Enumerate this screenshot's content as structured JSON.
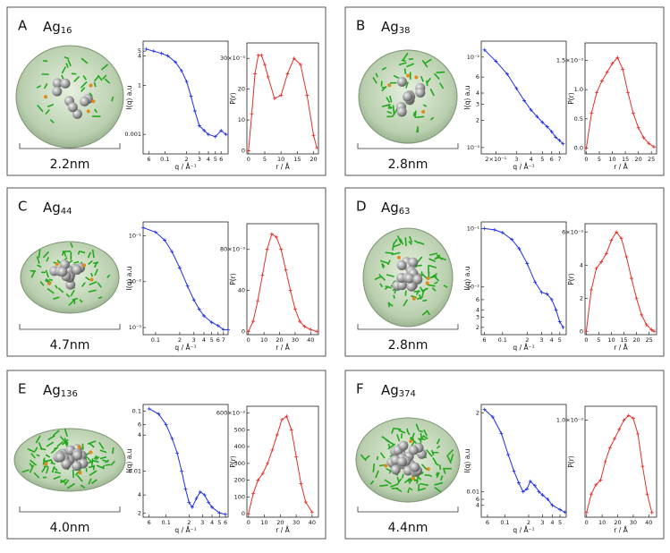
{
  "panels": [
    {
      "letter": "A",
      "element": "Ag",
      "subscript": "16",
      "size": "2.2nm"
    },
    {
      "letter": "B",
      "element": "Ag",
      "subscript": "38",
      "size": "2.8nm"
    },
    {
      "letter": "C",
      "element": "Ag",
      "subscript": "44",
      "size": "4.7nm"
    },
    {
      "letter": "D",
      "element": "Ag",
      "subscript": "63",
      "size": "2.8nm"
    },
    {
      "letter": "E",
      "element": "Ag",
      "subscript": "136",
      "size": "4.0nm"
    },
    {
      "letter": "F",
      "element": "Ag",
      "subscript": "374",
      "size": "4.4nm"
    }
  ],
  "chart_data": [
    {
      "type": "line",
      "xlabel": "q / Å⁻¹",
      "ylabel": "I(q) a.u",
      "xlog": true,
      "ylog": true,
      "color": "#1f2fe0",
      "xlim": [
        0.05,
        0.75
      ],
      "ylim": [
        0.0004,
        0.08
      ],
      "xticks": [
        {
          "value": 0.06,
          "label": "6"
        },
        0.1,
        {
          "value": 0.2,
          "label": "2"
        },
        {
          "value": 0.3,
          "label": "3"
        },
        {
          "value": 0.4,
          "label": "4"
        },
        {
          "value": 0.5,
          "label": "5"
        },
        {
          "value": 0.6,
          "label": "6"
        }
      ],
      "yticks": [
        {
          "value": 0.05,
          "label": "5"
        },
        {
          "value": 0.04,
          "label": "4"
        },
        {
          "value": 0.01,
          "label": "1"
        },
        0.001
      ],
      "x": [
        0.055,
        0.07,
        0.09,
        0.11,
        0.14,
        0.17,
        0.2,
        0.23,
        0.26,
        0.3,
        0.35,
        0.4,
        0.5,
        0.6,
        0.7
      ],
      "values": [
        0.055,
        0.05,
        0.045,
        0.04,
        0.03,
        0.02,
        0.012,
        0.006,
        0.003,
        0.0015,
        0.0012,
        0.001,
        0.0009,
        0.0012,
        0.001
      ]
    },
    {
      "type": "line",
      "xlabel": "r / Å",
      "ylabel": "P(r)",
      "color": "#e0302a",
      "xlim": [
        -0.5,
        21.5
      ],
      "ylim": [
        -1,
        35
      ],
      "xticks": [
        0,
        5,
        10,
        15,
        20
      ],
      "yticks": [
        0,
        10,
        20,
        {
          "value": 30,
          "label": "30×10⁻³"
        }
      ],
      "x": [
        0,
        1,
        2,
        3,
        4,
        5,
        6,
        8,
        10,
        12,
        14,
        16,
        18,
        20,
        21
      ],
      "values": [
        0,
        12,
        25,
        31,
        31,
        28,
        24,
        17,
        18,
        25,
        30,
        28,
        18,
        5,
        1
      ]
    },
    {
      "type": "line",
      "xlabel": "q / Å⁻¹",
      "ylabel": "I(q) a.u",
      "xlog": true,
      "ylog": true,
      "color": "#1f2fe0",
      "xlim": [
        0.15,
        0.8
      ],
      "ylim": [
        0.00085,
        0.015
      ],
      "xticks": [
        {
          "value": 0.2,
          "label": "2×10⁻¹"
        },
        {
          "value": 0.3,
          "label": "3"
        },
        {
          "value": 0.4,
          "label": "4"
        },
        {
          "value": 0.5,
          "label": "5"
        },
        {
          "value": 0.6,
          "label": "6"
        },
        {
          "value": 0.7,
          "label": "7"
        }
      ],
      "yticks": [
        {
          "value": 0.01,
          "label": "10⁻²"
        },
        {
          "value": 0.006,
          "label": "6"
        },
        {
          "value": 0.004,
          "label": "4"
        },
        {
          "value": 0.003,
          "label": "3"
        },
        {
          "value": 0.002,
          "label": "2"
        },
        {
          "value": 0.001,
          "label": "10⁻³"
        }
      ],
      "x": [
        0.16,
        0.2,
        0.25,
        0.3,
        0.35,
        0.4,
        0.45,
        0.5,
        0.55,
        0.6,
        0.65,
        0.7,
        0.75
      ],
      "values": [
        0.012,
        0.009,
        0.0065,
        0.0045,
        0.0033,
        0.0026,
        0.0022,
        0.0019,
        0.0017,
        0.0015,
        0.0013,
        0.0012,
        0.0011
      ]
    },
    {
      "type": "line",
      "xlabel": "r / Å",
      "ylabel": "P(r)",
      "color": "#e0302a",
      "xlim": [
        -0.5,
        27
      ],
      "ylim": [
        -0.1,
        1.8
      ],
      "xticks": [
        0,
        5,
        10,
        15,
        20,
        25
      ],
      "yticks": [
        {
          "value": 0,
          "label": "0.0"
        },
        0.5,
        {
          "value": 1,
          "label": "1.0"
        },
        {
          "value": 1.5,
          "label": "1.5×10⁻³"
        }
      ],
      "x": [
        0,
        2,
        4,
        6,
        8,
        10,
        12,
        14,
        16,
        18,
        20,
        22,
        24,
        26
      ],
      "values": [
        0,
        0.6,
        0.95,
        1.15,
        1.3,
        1.45,
        1.55,
        1.35,
        0.95,
        0.6,
        0.35,
        0.18,
        0.08,
        0.02
      ]
    },
    {
      "type": "line",
      "xlabel": "q / Å⁻¹",
      "ylabel": "I(q) a.u",
      "xlog": true,
      "ylog": true,
      "color": "#1f2fe0",
      "xlim": [
        0.07,
        0.8
      ],
      "ylim": [
        0.0007,
        0.2
      ],
      "xticks": [
        0.1,
        {
          "value": 0.2,
          "label": "2"
        },
        {
          "value": 0.3,
          "label": "3"
        },
        {
          "value": 0.4,
          "label": "4"
        },
        {
          "value": 0.5,
          "label": "5"
        },
        {
          "value": 0.6,
          "label": "6"
        },
        {
          "value": 0.7,
          "label": "7"
        }
      ],
      "yticks": [
        {
          "value": 0.1,
          "label": "10⁻¹"
        },
        {
          "value": 0.01,
          "label": "10⁻²"
        },
        {
          "value": 0.001,
          "label": "10⁻³"
        }
      ],
      "x": [
        0.07,
        0.1,
        0.13,
        0.16,
        0.2,
        0.25,
        0.3,
        0.35,
        0.4,
        0.5,
        0.6,
        0.7,
        0.8
      ],
      "values": [
        0.15,
        0.12,
        0.08,
        0.045,
        0.02,
        0.008,
        0.004,
        0.0025,
        0.0018,
        0.0013,
        0.0011,
        0.0009,
        0.0009
      ]
    },
    {
      "type": "line",
      "xlabel": "r / Å",
      "ylabel": "P(r)",
      "color": "#e0302a",
      "xlim": [
        -1,
        45
      ],
      "ylim": [
        -3,
        105
      ],
      "xticks": [
        0,
        10,
        20,
        30,
        40
      ],
      "yticks": [
        0,
        40,
        {
          "value": 80,
          "label": "80×10⁻³"
        }
      ],
      "x": [
        0,
        3,
        6,
        9,
        12,
        15,
        18,
        21,
        24,
        27,
        30,
        33,
        36,
        40,
        44
      ],
      "values": [
        0,
        10,
        30,
        55,
        80,
        95,
        92,
        80,
        60,
        40,
        22,
        10,
        5,
        2,
        0
      ]
    },
    {
      "type": "line",
      "xlabel": "q / Å⁻¹",
      "ylabel": "I(q) a.u",
      "xlog": true,
      "ylog": true,
      "color": "#1f2fe0",
      "xlim": [
        0.055,
        0.6
      ],
      "ylim": [
        0.0015,
        0.13
      ],
      "xticks": [
        {
          "value": 0.06,
          "label": "6"
        },
        0.1,
        {
          "value": 0.2,
          "label": "2"
        },
        {
          "value": 0.3,
          "label": "3"
        },
        {
          "value": 0.4,
          "label": "4"
        },
        {
          "value": 0.5,
          "label": "5"
        }
      ],
      "yticks": [
        {
          "value": 0.1,
          "label": "10⁻¹"
        },
        {
          "value": 0.01,
          "label": "10⁻²"
        },
        {
          "value": 0.006,
          "label": "6"
        },
        {
          "value": 0.004,
          "label": "4"
        },
        {
          "value": 0.003,
          "label": "3"
        },
        {
          "value": 0.002,
          "label": "2"
        }
      ],
      "x": [
        0.06,
        0.08,
        0.1,
        0.13,
        0.16,
        0.2,
        0.25,
        0.3,
        0.35,
        0.4,
        0.45,
        0.5,
        0.55
      ],
      "values": [
        0.1,
        0.095,
        0.085,
        0.065,
        0.045,
        0.025,
        0.012,
        0.008,
        0.0075,
        0.006,
        0.004,
        0.0025,
        0.002
      ]
    },
    {
      "type": "line",
      "xlabel": "r / Å",
      "ylabel": "P(r)",
      "color": "#e0302a",
      "xlim": [
        -0.5,
        28
      ],
      "ylim": [
        -0.2,
        6.5
      ],
      "xticks": [
        0,
        5,
        10,
        15,
        20,
        25
      ],
      "yticks": [
        0,
        2,
        4,
        {
          "value": 6,
          "label": "6×10⁻³"
        }
      ],
      "x": [
        0,
        2,
        4,
        6,
        8,
        10,
        12,
        14,
        16,
        18,
        20,
        22,
        24,
        26,
        27
      ],
      "values": [
        0,
        2.5,
        3.8,
        4.2,
        4.7,
        5.5,
        6.0,
        5.6,
        4.5,
        3.2,
        2,
        1,
        0.4,
        0.1,
        0
      ]
    },
    {
      "type": "line",
      "xlabel": "q / Å⁻¹",
      "ylabel": "I(q) a.u",
      "xlog": true,
      "ylog": true,
      "color": "#1f2fe0",
      "xlim": [
        0.05,
        0.65
      ],
      "ylim": [
        0.0017,
        0.13
      ],
      "xticks": [
        {
          "value": 0.06,
          "label": "6"
        },
        0.1,
        {
          "value": 0.2,
          "label": "2"
        },
        {
          "value": 0.3,
          "label": "3"
        },
        {
          "value": 0.4,
          "label": "4"
        },
        {
          "value": 0.5,
          "label": "5"
        },
        {
          "value": 0.6,
          "label": "6"
        }
      ],
      "yticks": [
        0.1,
        {
          "value": 0.06,
          "label": "6"
        },
        {
          "value": 0.04,
          "label": "4"
        },
        0.01,
        {
          "value": 0.004,
          "label": "4"
        },
        {
          "value": 0.002,
          "label": "2"
        }
      ],
      "x": [
        0.06,
        0.08,
        0.1,
        0.12,
        0.14,
        0.16,
        0.18,
        0.2,
        0.22,
        0.25,
        0.28,
        0.32,
        0.36,
        0.4,
        0.5,
        0.6
      ],
      "values": [
        0.11,
        0.09,
        0.06,
        0.035,
        0.02,
        0.01,
        0.005,
        0.003,
        0.0025,
        0.0035,
        0.0045,
        0.004,
        0.003,
        0.0025,
        0.002,
        0.0019
      ]
    },
    {
      "type": "line",
      "xlabel": "r / Å",
      "ylabel": "P(r)",
      "color": "#e0302a",
      "xlim": [
        -1,
        44
      ],
      "ylim": [
        -20,
        640
      ],
      "xticks": [
        0,
        10,
        20,
        30,
        40
      ],
      "yticks": [
        0,
        100,
        200,
        300,
        400,
        500,
        {
          "value": 600,
          "label": "600×10⁻³"
        }
      ],
      "x": [
        0,
        3,
        6,
        9,
        12,
        15,
        18,
        21,
        24,
        27,
        30,
        33,
        36,
        40
      ],
      "values": [
        0,
        120,
        200,
        240,
        300,
        380,
        470,
        560,
        580,
        500,
        340,
        180,
        70,
        10
      ]
    },
    {
      "type": "line",
      "xlabel": "q / Å⁻¹",
      "ylabel": "I(q) a.u",
      "xlog": true,
      "ylog": true,
      "color": "#1f2fe0",
      "xlim": [
        0.05,
        0.6
      ],
      "ylim": [
        0.0018,
        3.5
      ],
      "xticks": [
        {
          "value": 0.06,
          "label": "6"
        },
        0.1,
        {
          "value": 0.2,
          "label": "2"
        },
        {
          "value": 0.3,
          "label": "3"
        },
        {
          "value": 0.4,
          "label": "4"
        },
        {
          "value": 0.5,
          "label": "5"
        }
      ],
      "yticks": [
        2,
        0.01,
        {
          "value": 0.006,
          "label": "6"
        },
        {
          "value": 0.004,
          "label": "4"
        }
      ],
      "x": [
        0.055,
        0.07,
        0.09,
        0.11,
        0.13,
        0.15,
        0.17,
        0.19,
        0.21,
        0.24,
        0.27,
        0.3,
        0.35,
        0.4,
        0.5,
        0.58
      ],
      "values": [
        2.5,
        1.5,
        0.5,
        0.12,
        0.04,
        0.018,
        0.01,
        0.012,
        0.02,
        0.015,
        0.01,
        0.008,
        0.006,
        0.004,
        0.003,
        0.0025
      ]
    },
    {
      "type": "line",
      "xlabel": "r / Å",
      "ylabel": "P(r)",
      "color": "#e0302a",
      "xlim": [
        -1,
        45
      ],
      "ylim": [
        -0.05,
        1.15
      ],
      "xticks": [
        0,
        10,
        20,
        30,
        40
      ],
      "yticks": [
        {
          "value": 1,
          "label": "1.0×10⁻³"
        }
      ],
      "x": [
        0,
        3,
        6,
        9,
        12,
        15,
        18,
        21,
        24,
        27,
        30,
        33,
        36,
        39,
        42
      ],
      "values": [
        0,
        0.2,
        0.3,
        0.35,
        0.55,
        0.7,
        0.8,
        0.9,
        1.0,
        1.05,
        1.02,
        0.85,
        0.5,
        0.2,
        0
      ]
    }
  ]
}
